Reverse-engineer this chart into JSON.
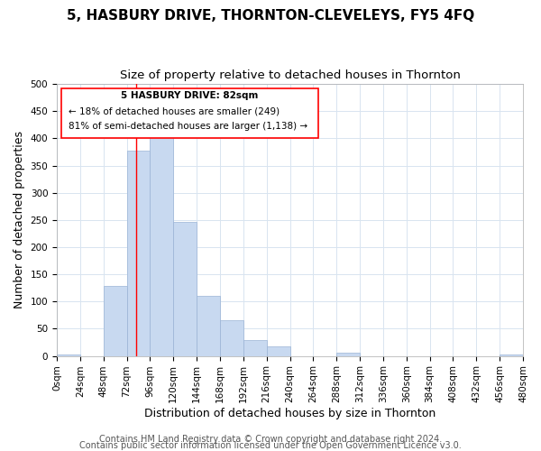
{
  "title": "5, HASBURY DRIVE, THORNTON-CLEVELEYS, FY5 4FQ",
  "subtitle": "Size of property relative to detached houses in Thornton",
  "xlabel": "Distribution of detached houses by size in Thornton",
  "ylabel": "Number of detached properties",
  "footer_line1": "Contains HM Land Registry data © Crown copyright and database right 2024.",
  "footer_line2": "Contains public sector information licensed under the Open Government Licence v3.0.",
  "bar_color": "#c8d9f0",
  "bar_edge_color": "#9ab3d5",
  "red_line_x": 82,
  "annotation_title": "5 HASBURY DRIVE: 82sqm",
  "annotation_line2": "← 18% of detached houses are smaller (249)",
  "annotation_line3": "81% of semi-detached houses are larger (1,138) →",
  "bin_edges": [
    0,
    24,
    48,
    72,
    96,
    120,
    144,
    168,
    192,
    216,
    240,
    264,
    288,
    312,
    336,
    360,
    384,
    408,
    432,
    456,
    480
  ],
  "bar_heights": [
    3,
    0,
    128,
    378,
    418,
    247,
    110,
    65,
    30,
    17,
    0,
    0,
    6,
    0,
    0,
    0,
    0,
    0,
    0,
    3
  ],
  "ylim": [
    0,
    500
  ],
  "xlim": [
    0,
    480
  ],
  "yticks": [
    0,
    50,
    100,
    150,
    200,
    250,
    300,
    350,
    400,
    450,
    500
  ],
  "grid_color": "#d8e4f0",
  "title_fontsize": 11,
  "subtitle_fontsize": 9.5,
  "axis_label_fontsize": 9,
  "tick_fontsize": 7.5,
  "footer_fontsize": 7
}
